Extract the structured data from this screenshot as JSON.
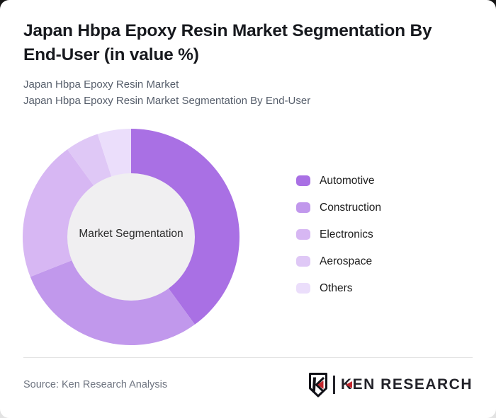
{
  "page": {
    "backdrop_top_color": "#141414",
    "backdrop_bottom_color": "#e3e3e3",
    "card_color": "#ffffff"
  },
  "header": {
    "title": "Japan Hbpa Epoxy Resin Market Segmentation By End-User (in value %)",
    "subtitle_line1": "Japan Hbpa Epoxy Resin Market",
    "subtitle_line2": "Japan Hbpa Epoxy Resin Market Segmentation By End-User"
  },
  "chart_data": {
    "type": "pie",
    "variant": "donut",
    "title": "Japan Hbpa Epoxy Resin Market Segmentation By End-User (in value %)",
    "center_label": "Market Segmentation",
    "unit": "value %",
    "data_labels_shown": false,
    "values_estimated_from_arc_angles": true,
    "categories": [
      "Automotive",
      "Construction",
      "Electronics",
      "Aerospace",
      "Others"
    ],
    "values": [
      40,
      29,
      21,
      5,
      5
    ],
    "colors": [
      "#a970e4",
      "#c198ec",
      "#d7b7f3",
      "#dfc8f6",
      "#ebdefb"
    ],
    "start_angle_deg": 0,
    "clockwise": true,
    "inner_radius_ratio": 0.588,
    "hole_color": "#f0eff1",
    "legend_position": "right"
  },
  "footer": {
    "source_text": "Source: Ken Research Analysis",
    "logo": {
      "brand_first_letter": "K",
      "brand_rest": "EN RESEARCH",
      "accent_color": "#c3272e",
      "text_color": "#23232a"
    }
  }
}
